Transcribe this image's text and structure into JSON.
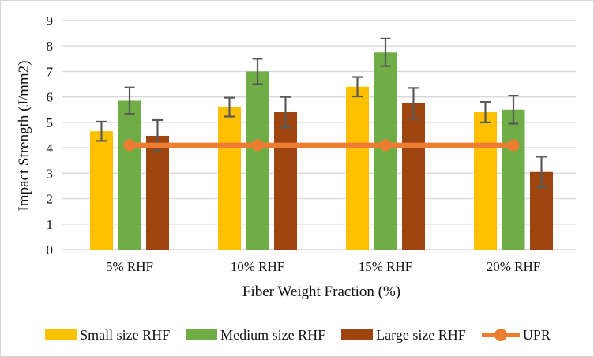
{
  "chart_data": {
    "type": "bar",
    "title": "",
    "categories": [
      "5% RHF",
      "10% RHF",
      "15% RHF",
      "20% RHF"
    ],
    "series": [
      {
        "name": "Small size RHF",
        "type": "bar",
        "color": "#FFC000",
        "values": [
          4.65,
          5.6,
          6.4,
          5.4
        ],
        "errors": [
          0.38,
          0.37,
          0.38,
          0.4
        ]
      },
      {
        "name": "Medium size RHF",
        "type": "bar",
        "color": "#70AD47",
        "values": [
          5.85,
          7.0,
          7.75,
          5.5
        ],
        "errors": [
          0.52,
          0.5,
          0.54,
          0.55
        ]
      },
      {
        "name": "Large size RHF",
        "type": "bar",
        "color": "#9E450F",
        "values": [
          4.47,
          5.4,
          5.75,
          3.05
        ],
        "errors": [
          0.62,
          0.6,
          0.6,
          0.6
        ]
      },
      {
        "name": "UPR",
        "type": "line",
        "color": "#ED7D31",
        "values": [
          4.1,
          4.1,
          4.1,
          4.1
        ]
      }
    ],
    "xlabel": "Fiber Weight Fraction (%)",
    "ylabel": "Impact Strength (J/mm2)",
    "ylim": [
      0,
      9
    ],
    "ytick_step": 1,
    "grid": true,
    "legend_position": "bottom",
    "colors": {
      "error_bar": "#595959",
      "gridline": "#D9D9D9",
      "axis_line": "#D9D9D9",
      "text": "#111111",
      "figure_border": "#D6D6D6",
      "background": "#FFFFFF"
    }
  }
}
